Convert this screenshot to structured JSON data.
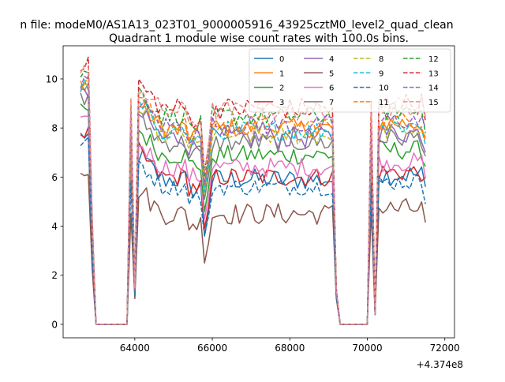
{
  "chart_data": {
    "type": "line",
    "suptitle": "n file: modeM0/AS1A13_023T01_9000005916_43925cztM0_level2_quad_clean",
    "title": "Quadrant 1 module wise count rates with 100.0s bins.",
    "xlabel": "",
    "ylabel": "",
    "x_offset_label": "+4.374e8",
    "xlim": [
      62150,
      72250
    ],
    "ylim": [
      -0.55,
      11.35
    ],
    "xticks": [
      64000,
      66000,
      68000,
      70000,
      72000
    ],
    "xtick_labels": [
      "64000",
      "66000",
      "68000",
      "70000",
      "72000"
    ],
    "yticks": [
      0,
      2,
      4,
      6,
      8,
      10
    ],
    "ytick_labels": [
      "0",
      "2",
      "4",
      "6",
      "8",
      "10"
    ],
    "grid": false,
    "legend_position": "top-right",
    "legend_columns": 4,
    "segments": [
      {
        "start": 62600,
        "end": 62900
      },
      {
        "start": 64000,
        "end": 69200
      },
      {
        "start": 70200,
        "end": 71550
      }
    ],
    "zero_gaps": [
      [
        62900,
        63900
      ],
      [
        69200,
        70100
      ]
    ],
    "series": [
      {
        "name": "0",
        "color": "#1f77b4",
        "dash": "solid",
        "level": 5.9,
        "amp": 0.45,
        "dip": 1.9
      },
      {
        "name": "1",
        "color": "#ff7f0e",
        "dash": "solid",
        "level": 8.0,
        "amp": 0.4,
        "dip": 2.0
      },
      {
        "name": "2",
        "color": "#2ca02c",
        "dash": "solid",
        "level": 6.9,
        "amp": 0.4,
        "dip": 1.9
      },
      {
        "name": "3",
        "color": "#d62728",
        "dash": "solid",
        "level": 6.0,
        "amp": 0.4,
        "dip": 1.7
      },
      {
        "name": "4",
        "color": "#9467bd",
        "dash": "solid",
        "level": 7.6,
        "amp": 0.45,
        "dip": 2.0
      },
      {
        "name": "5",
        "color": "#8c564b",
        "dash": "solid",
        "level": 4.5,
        "amp": 0.45,
        "dip": 1.6
      },
      {
        "name": "6",
        "color": "#e377c2",
        "dash": "solid",
        "level": 6.4,
        "amp": 0.4,
        "dip": 1.7
      },
      {
        "name": "7",
        "color": "#7f7f7f",
        "dash": "solid",
        "level": 7.4,
        "amp": 0.4,
        "dip": 1.9
      },
      {
        "name": "8",
        "color": "#bcbd22",
        "dash": "dashed",
        "level": 7.7,
        "amp": 0.4,
        "dip": 2.0
      },
      {
        "name": "9",
        "color": "#17becf",
        "dash": "dashed",
        "level": 7.9,
        "amp": 0.4,
        "dip": 2.1
      },
      {
        "name": "10",
        "color": "#1f77b4",
        "dash": "dashed",
        "level": 5.6,
        "amp": 0.35,
        "dip": 1.6
      },
      {
        "name": "11",
        "color": "#ff7f0e",
        "dash": "dashed",
        "level": 8.1,
        "amp": 0.4,
        "dip": 2.0
      },
      {
        "name": "12",
        "color": "#2ca02c",
        "dash": "dashed",
        "level": 8.5,
        "amp": 0.4,
        "dip": 2.1
      },
      {
        "name": "13",
        "color": "#d62728",
        "dash": "dashed",
        "level": 8.8,
        "amp": 0.45,
        "dip": 2.2
      },
      {
        "name": "14",
        "color": "#9467bd",
        "dash": "dashed",
        "level": 8.1,
        "amp": 0.4,
        "dip": 2.0
      },
      {
        "name": "15",
        "color": "#e8908e",
        "dash": "dashed",
        "level": 8.7,
        "amp": 0.4,
        "dip": 2.1
      }
    ]
  }
}
